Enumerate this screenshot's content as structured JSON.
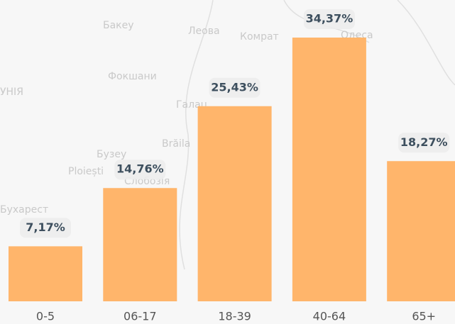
{
  "chart_data": {
    "type": "bar",
    "categories": [
      "0-5",
      "06-17",
      "18-39",
      "40-64",
      "65+"
    ],
    "values": [
      7.17,
      14.76,
      25.43,
      34.37,
      18.27
    ],
    "value_labels": [
      "7,17%",
      "14,76%",
      "25,43%",
      "34,37%",
      "18,27%"
    ],
    "color": "#ffb56b"
  },
  "map": {
    "labels": [
      "Бакеу",
      "Леова",
      "Комрат",
      "Одеса",
      "Фокшани",
      "Галац",
      "УНІЯ",
      "Бузеу",
      "Ploiești",
      "Слобозія",
      "Brăila",
      "Бухарест"
    ]
  }
}
